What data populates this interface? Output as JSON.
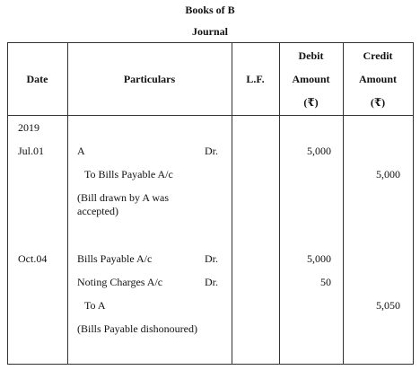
{
  "header": {
    "title": "Books of B",
    "subtitle": "Journal"
  },
  "columns": {
    "date": "Date",
    "particulars": "Particulars",
    "lf": "L.F.",
    "debit": {
      "line1": "Debit",
      "line2": "Amount",
      "line3": "(₹)"
    },
    "credit": {
      "line1": "Credit",
      "line2": "Amount",
      "line3": "(₹)"
    }
  },
  "year": "2019",
  "entries": [
    {
      "date": "Jul.01",
      "debit_account": "A",
      "debit_marker": "Dr.",
      "debit_amount": "5,000",
      "credit_account": "To Bills Payable A/c",
      "credit_amount": "5,000",
      "narration": "(Bill drawn by A was accepted)"
    },
    {
      "date": "Oct.04",
      "debit_lines": [
        {
          "account": "Bills Payable A/c",
          "marker": "Dr.",
          "amount": "5,000"
        },
        {
          "account": "Noting Charges A/c",
          "marker": "Dr.",
          "amount": "50"
        }
      ],
      "credit_account": "To A",
      "credit_amount": "5,050",
      "narration": "(Bills Payable dishonoured)"
    }
  ]
}
